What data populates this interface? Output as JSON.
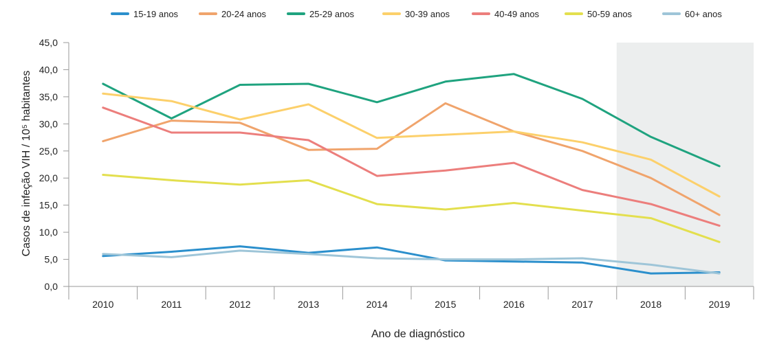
{
  "chart_data": {
    "type": "line",
    "xlabel": "Ano de diagnóstico",
    "ylabel": "Casos de infeção VIH / 10⁵ habitantes",
    "ylim": [
      0,
      45
    ],
    "ytick_labels": [
      "0,0",
      "5,0",
      "10,0",
      "15,0",
      "20,0",
      "25,0",
      "30,0",
      "35,0",
      "40,0",
      "45,0"
    ],
    "categories": [
      "2010",
      "2011",
      "2012",
      "2013",
      "2014",
      "2015",
      "2016",
      "2017",
      "2018",
      "2019"
    ],
    "legend_position": "top",
    "grid": false,
    "shaded_region": [
      "2018",
      "2019"
    ],
    "shade_color": "#eceeee",
    "series": [
      {
        "name": "15-19 anos",
        "color": "#2b8fcc",
        "values": [
          5.6,
          6.4,
          7.4,
          6.2,
          7.2,
          4.8,
          4.6,
          4.4,
          2.4,
          2.6
        ]
      },
      {
        "name": "20-24 anos",
        "color": "#f0a46c",
        "values": [
          26.8,
          30.6,
          30.2,
          25.2,
          25.4,
          33.8,
          28.6,
          25.0,
          20.0,
          13.2
        ]
      },
      {
        "name": "25-29 anos",
        "color": "#1fa37f",
        "values": [
          37.4,
          31.0,
          37.2,
          37.4,
          34.0,
          37.8,
          39.2,
          34.6,
          27.6,
          22.2
        ]
      },
      {
        "name": "30-39 anos",
        "color": "#fcd06b",
        "values": [
          35.6,
          34.2,
          30.8,
          33.6,
          27.4,
          28.0,
          28.6,
          26.6,
          23.4,
          16.6
        ]
      },
      {
        "name": "40-49 anos",
        "color": "#ec7e7c",
        "values": [
          33.0,
          28.4,
          28.4,
          27.0,
          20.4,
          21.4,
          22.8,
          17.8,
          15.2,
          11.2
        ]
      },
      {
        "name": "50-59 anos",
        "color": "#e3df4e",
        "values": [
          20.6,
          19.6,
          18.8,
          19.6,
          15.2,
          14.2,
          15.4,
          14.0,
          12.6,
          8.2
        ]
      },
      {
        "name": "60+ anos",
        "color": "#9ec5d8",
        "values": [
          6.0,
          5.4,
          6.6,
          6.0,
          5.2,
          5.0,
          5.0,
          5.2,
          4.0,
          2.4
        ]
      }
    ]
  }
}
